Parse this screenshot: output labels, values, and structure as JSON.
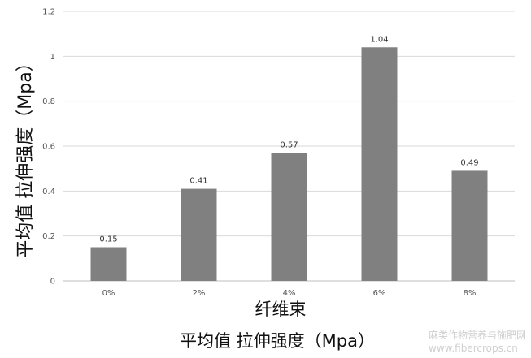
{
  "chart_data": {
    "type": "bar",
    "categories": [
      "0%",
      "2%",
      "4%",
      "6%",
      "8%"
    ],
    "values": [
      0.15,
      0.41,
      0.57,
      1.04,
      0.49
    ],
    "value_labels": [
      "0.15",
      "0.41",
      "0.57",
      "1.04",
      "0.49"
    ],
    "xlabel": "纤维束",
    "ylabel": "平均值 拉伸强度（Mpa）",
    "ylim": [
      0,
      1.2
    ],
    "yticks": [
      0,
      0.2,
      0.4,
      0.6,
      0.8,
      1,
      1.2
    ],
    "ytick_labels": [
      "0",
      "0.2",
      "0.4",
      "0.6",
      "0.8",
      "1",
      "1.2"
    ],
    "grid": true,
    "bar_color": "#808080",
    "grid_color": "#d9d9d9"
  },
  "caption": "平均值 拉伸强度（Mpa）",
  "watermark": {
    "line1": "麻类作物营养与施肥网",
    "line2": "www.fibercrops.cn"
  }
}
